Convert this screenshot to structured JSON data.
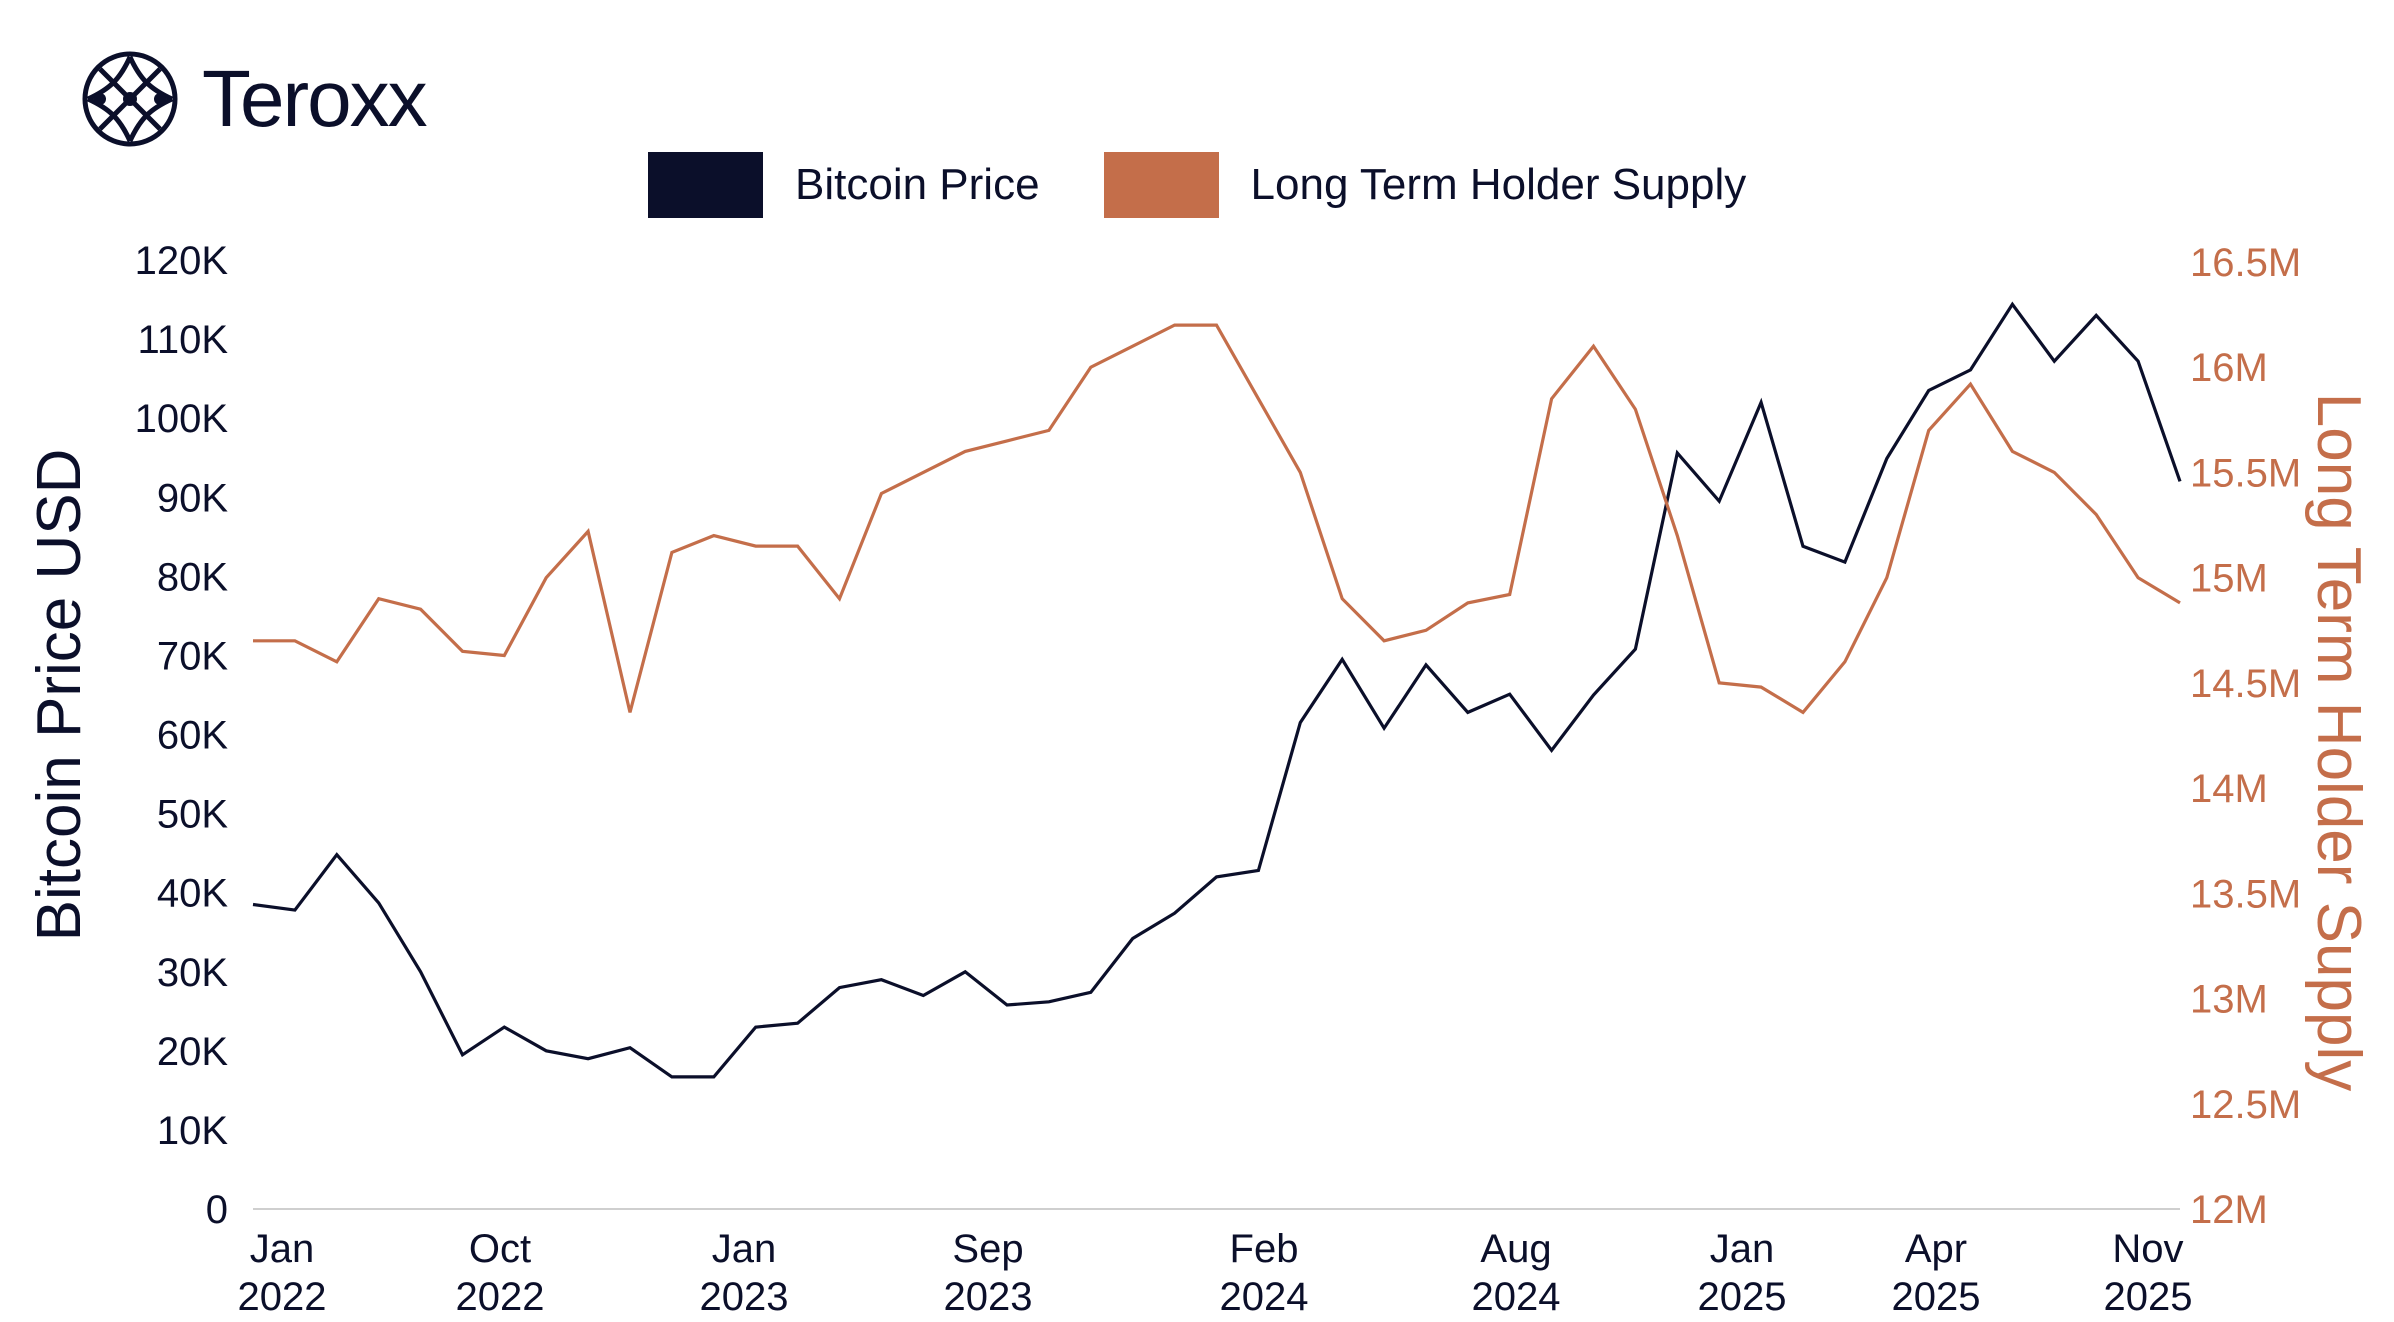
{
  "brand": {
    "name": "Teroxx"
  },
  "chart_data": {
    "type": "line",
    "title": "",
    "legend_position": "top",
    "x_tick_labels": [
      [
        "Jan",
        "2022"
      ],
      [
        "Oct",
        "2022"
      ],
      [
        "Jan",
        "2023"
      ],
      [
        "Sep",
        "2023"
      ],
      [
        "Feb",
        "2024"
      ],
      [
        "Aug",
        "2024"
      ],
      [
        "Jan",
        "2025"
      ],
      [
        "Apr",
        "2025"
      ],
      [
        "Nov",
        "2025"
      ]
    ],
    "ylabel_left": "Bitcoin Price USD",
    "ylabel_right": "Long Term Holder Supply",
    "y_left_ticks": [
      "0",
      "10K",
      "20K",
      "30K",
      "40K",
      "50K",
      "60K",
      "70K",
      "80K",
      "90K",
      "100K",
      "110K",
      "120K"
    ],
    "y_left_range": [
      0,
      120000
    ],
    "y_right_ticks": [
      "12M",
      "12.5M",
      "13M",
      "13.5M",
      "14M",
      "14.5M",
      "15M",
      "15.5M",
      "16M",
      "16.5M"
    ],
    "y_right_range": [
      12000000,
      16500000
    ],
    "grid": false,
    "series": [
      {
        "name": "Bitcoin Price",
        "axis": "left",
        "color": "#0b0f2a",
        "values": [
          38500,
          37800,
          44800,
          38700,
          30000,
          19500,
          23000,
          20000,
          19000,
          20400,
          16700,
          16700,
          23000,
          23500,
          28000,
          29000,
          27000,
          30000,
          25800,
          26200,
          27400,
          34200,
          37400,
          42000,
          42800,
          61500,
          69500,
          60800,
          68800,
          62800,
          65100,
          58000,
          65000,
          70800,
          95600,
          89500,
          102000,
          83800,
          81800,
          94900,
          103500,
          106100,
          114400,
          107200,
          113000,
          107200,
          92000
        ]
      },
      {
        "name": "Long Term Holder Supply",
        "axis": "right",
        "color": "#c46e4a",
        "values": [
          14700000,
          14700000,
          14600000,
          14900000,
          14850000,
          14650000,
          14630000,
          15000000,
          15220000,
          14360000,
          15120000,
          15200000,
          15150000,
          15150000,
          14900000,
          15400000,
          15500000,
          15600000,
          15650000,
          15700000,
          16000000,
          16100000,
          16200000,
          16200000,
          15850000,
          15500000,
          14900000,
          14700000,
          14750000,
          14880000,
          14920000,
          15850000,
          16100000,
          15800000,
          15200000,
          14500000,
          14480000,
          14360000,
          14600000,
          15000000,
          15700000,
          15920000,
          15600000,
          15500000,
          15300000,
          15000000,
          14880000
        ]
      }
    ]
  }
}
